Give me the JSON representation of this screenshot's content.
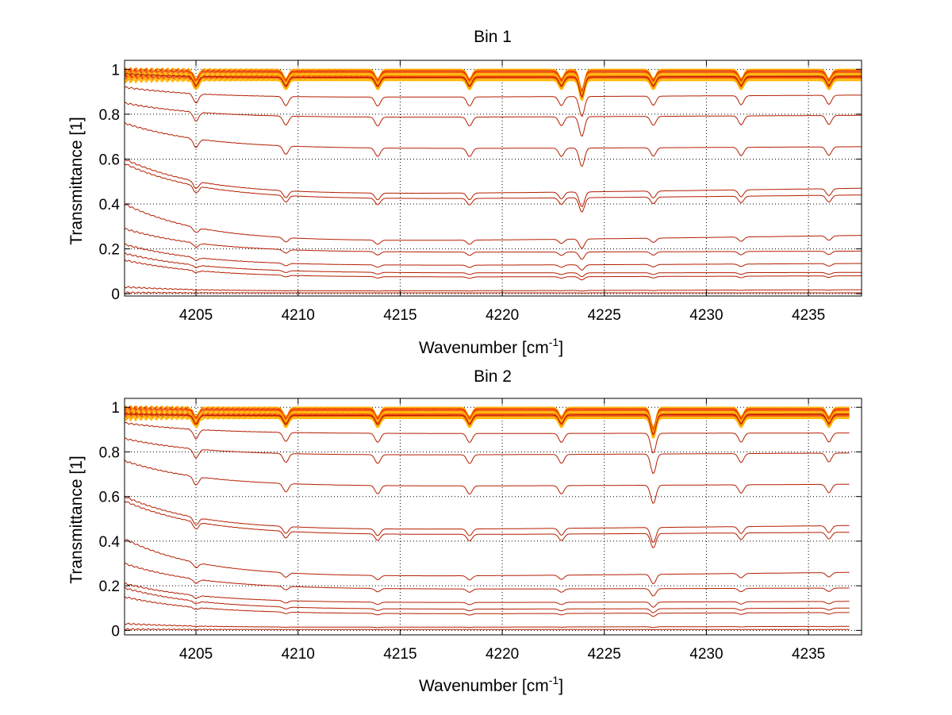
{
  "colors": {
    "background": "#ffffff",
    "axes": "#000000",
    "grid": "#000000",
    "series_dark": "#b41e00",
    "series_mid": "#dc3200",
    "series_warm": "#ff6400",
    "series_light": "#ffb400"
  },
  "chart_data": [
    {
      "type": "line",
      "title": "Bin 1",
      "xlabel_prefix": "Wavenumber [cm",
      "xlabel_sup": "-1",
      "xlabel_suffix": "]",
      "ylabel": "Transmittance [1]",
      "xlim": [
        4201.5,
        4237.6
      ],
      "ylim": [
        -0.01,
        1.04
      ],
      "xticks": [
        4205,
        4210,
        4215,
        4220,
        4225,
        4230,
        4235
      ],
      "yticks": [
        0,
        0.2,
        0.4,
        0.6,
        0.8,
        1
      ],
      "ytick_labels": [
        "0",
        "0.2",
        "0.4",
        "0.6",
        "0.8",
        "1"
      ],
      "xtick_labels": [
        "4205",
        "4210",
        "4215",
        "4220",
        "4225",
        "4230",
        "4235"
      ],
      "grid": "dotted",
      "absorption_lines": [
        4205.0,
        4209.4,
        4213.9,
        4218.4,
        4222.9,
        4223.9,
        4227.4,
        4231.7,
        4236.0
      ],
      "series": [
        {
          "levels": [
            1.0,
            1.0,
            1.0
          ]
        },
        {
          "levels": [
            0.995,
            0.995,
            0.995
          ]
        },
        {
          "levels": [
            0.99,
            0.99,
            0.99
          ]
        },
        {
          "levels": [
            0.985,
            0.985,
            0.985
          ]
        },
        {
          "levels": [
            0.98,
            0.98,
            0.98
          ]
        },
        {
          "levels": [
            0.975,
            0.975,
            0.975
          ]
        },
        {
          "levels": [
            0.97,
            0.97,
            0.97
          ]
        },
        {
          "levels": [
            0.965,
            0.965,
            0.965
          ]
        },
        {
          "levels": [
            0.96,
            0.96,
            0.96
          ]
        },
        {
          "levels": [
            0.955,
            0.955,
            0.955
          ]
        },
        {
          "levels": [
            0.95,
            0.95,
            0.95
          ]
        },
        {
          "levels": [
            0.98,
            0.96,
            0.97
          ]
        },
        {
          "levels": [
            0.92,
            0.87,
            0.885
          ]
        },
        {
          "levels": [
            0.85,
            0.78,
            0.795
          ]
        },
        {
          "levels": [
            0.76,
            0.64,
            0.655
          ]
        },
        {
          "levels": [
            0.6,
            0.43,
            0.47
          ]
        },
        {
          "levels": [
            0.58,
            0.41,
            0.44
          ]
        },
        {
          "levels": [
            0.4,
            0.22,
            0.26
          ]
        },
        {
          "levels": [
            0.29,
            0.18,
            0.19
          ]
        },
        {
          "levels": [
            0.22,
            0.12,
            0.135
          ]
        },
        {
          "levels": [
            0.18,
            0.09,
            0.095
          ]
        },
        {
          "levels": [
            0.15,
            0.07,
            0.08
          ]
        },
        {
          "levels": [
            0.03,
            0.01,
            0.018
          ]
        },
        {
          "levels": [
            0.005,
            0.004,
            0.004
          ]
        }
      ]
    },
    {
      "type": "line",
      "title": "Bin 2",
      "xlabel_prefix": "Wavenumber [cm",
      "xlabel_sup": "-1",
      "xlabel_suffix": "]",
      "ylabel": "Transmittance [1]",
      "xlim": [
        4201.5,
        4237.6
      ],
      "ylim": [
        -0.02,
        1.04
      ],
      "xticks": [
        4205,
        4210,
        4215,
        4220,
        4225,
        4230,
        4235
      ],
      "yticks": [
        0,
        0.2,
        0.4,
        0.6,
        0.8,
        1
      ],
      "ytick_labels": [
        "0",
        "0.2",
        "0.4",
        "0.6",
        "0.8",
        "1"
      ],
      "xtick_labels": [
        "4205",
        "4210",
        "4215",
        "4220",
        "4225",
        "4230",
        "4235"
      ],
      "grid": "dotted",
      "absorption_lines": [
        4205.0,
        4209.4,
        4213.9,
        4218.4,
        4222.9,
        4227.4,
        4231.7,
        4236.0
      ],
      "series": [
        {
          "levels": [
            1.0,
            1.0,
            1.0
          ]
        },
        {
          "levels": [
            0.995,
            0.995,
            0.995
          ]
        },
        {
          "levels": [
            0.99,
            0.99,
            0.99
          ]
        },
        {
          "levels": [
            0.985,
            0.985,
            0.985
          ]
        },
        {
          "levels": [
            0.98,
            0.98,
            0.98
          ]
        },
        {
          "levels": [
            0.975,
            0.975,
            0.975
          ]
        },
        {
          "levels": [
            0.97,
            0.97,
            0.97
          ]
        },
        {
          "levels": [
            0.965,
            0.965,
            0.965
          ]
        },
        {
          "levels": [
            0.96,
            0.96,
            0.96
          ]
        },
        {
          "levels": [
            0.955,
            0.955,
            0.955
          ]
        },
        {
          "levels": [
            0.95,
            0.95,
            0.95
          ]
        },
        {
          "levels": [
            0.97,
            0.96,
            0.97
          ]
        },
        {
          "levels": [
            0.93,
            0.88,
            0.885
          ]
        },
        {
          "levels": [
            0.86,
            0.78,
            0.795
          ]
        },
        {
          "levels": [
            0.76,
            0.64,
            0.655
          ]
        },
        {
          "levels": [
            0.6,
            0.44,
            0.47
          ]
        },
        {
          "levels": [
            0.58,
            0.42,
            0.44
          ]
        },
        {
          "levels": [
            0.41,
            0.23,
            0.26
          ]
        },
        {
          "levels": [
            0.3,
            0.18,
            0.19
          ]
        },
        {
          "levels": [
            0.21,
            0.12,
            0.13
          ]
        },
        {
          "levels": [
            0.19,
            0.09,
            0.1
          ]
        },
        {
          "levels": [
            0.15,
            0.07,
            0.08
          ]
        },
        {
          "levels": [
            0.03,
            0.012,
            0.018
          ]
        },
        {
          "levels": [
            0.005,
            0.004,
            0.004
          ]
        }
      ]
    }
  ]
}
